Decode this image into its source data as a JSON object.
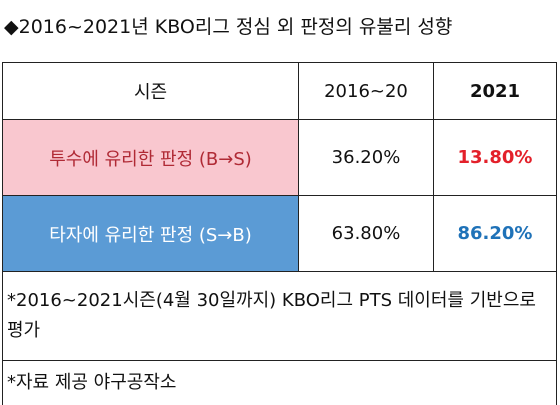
{
  "header": {
    "title": "◆2016~2021년 KBO리그 정심 외 판정의 유불리 성향"
  },
  "table": {
    "columns": [
      "시즌",
      "2016~20",
      "2021"
    ],
    "rows": [
      [
        "투수에 유리한 판정 (B→S)",
        "36.20%",
        "13.80%"
      ],
      [
        "타자에 유리한 판정 (S→B)",
        "63.80%",
        "86.20%"
      ]
    ]
  },
  "notes": [
    "*2016~2021시즌(4월 30일까지) KBO리그 PTS 데이터를 기반으로 평가",
    "*자료 제공 야구공작소"
  ]
}
